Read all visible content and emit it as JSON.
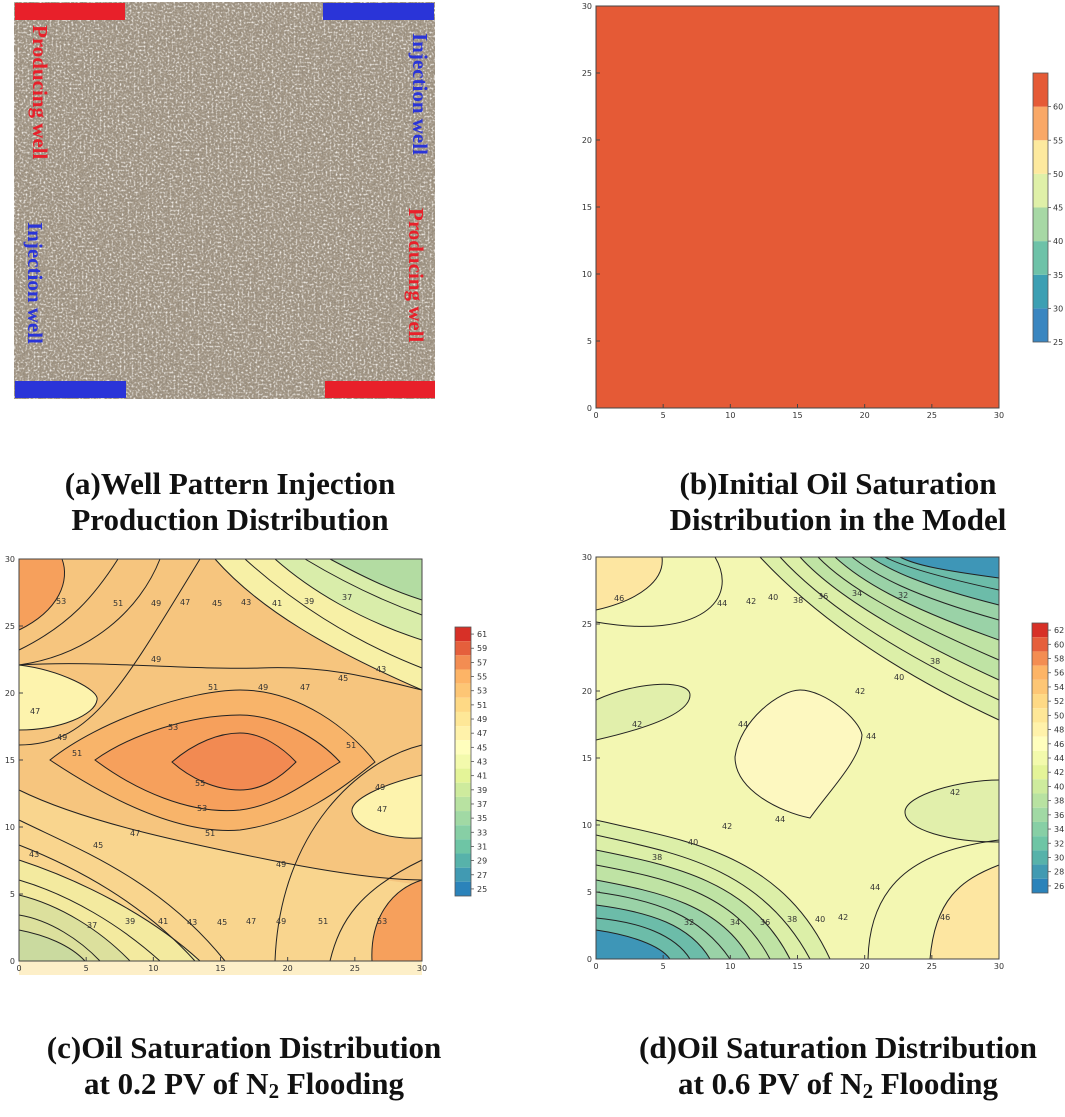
{
  "captions": {
    "a": {
      "line1": "(a)Well Pattern Injection",
      "line2": "Production Distribution"
    },
    "b": {
      "line1": "(b)Initial Oil Saturation",
      "line2": "Distribution in the Model"
    },
    "c": {
      "line1": "(c)Oil Saturation Distribution",
      "line2_pre": "at 0.2 PV of N",
      "line2_sub": "2",
      "line2_post": " Flooding"
    },
    "d": {
      "line1": "(d)Oil Saturation Distribution",
      "line2_pre": "at 0.6 PV of N",
      "line2_sub": "2",
      "line2_post": " Flooding"
    }
  },
  "colors": {
    "producing": "#e8202a",
    "injection": "#2a34d8",
    "rock_base": "#a19584",
    "uniform_fill": "#e55a36",
    "contour_line": "#222222"
  },
  "chart_data": [
    {
      "id": "a",
      "type": "other",
      "title": "Well Pattern Injection Production Distribution",
      "wells": [
        {
          "label": "Producing well",
          "kind": "producing",
          "corner": "top-left"
        },
        {
          "label": "Injection well",
          "kind": "injection",
          "corner": "top-right"
        },
        {
          "label": "Injection well",
          "kind": "injection",
          "corner": "bottom-left"
        },
        {
          "label": "Producing well",
          "kind": "producing",
          "corner": "bottom-right"
        }
      ]
    },
    {
      "id": "b",
      "type": "heatmap",
      "title": "Initial Oil Saturation Distribution in the Model",
      "xlim": [
        0,
        30
      ],
      "ylim": [
        0,
        30
      ],
      "xticks": [
        0,
        5,
        10,
        15,
        20,
        25,
        30
      ],
      "yticks": [
        0,
        5,
        10,
        15,
        20,
        25,
        30
      ],
      "uniform_value": 62,
      "colorbar": {
        "ticks": [
          25,
          30,
          35,
          40,
          45,
          50,
          55,
          60
        ],
        "colors": [
          "#3a86c0",
          "#3c9fb3",
          "#6ec2a8",
          "#a7d8a5",
          "#dff0a8",
          "#fde99e",
          "#f9a867",
          "#e55a36"
        ]
      }
    },
    {
      "id": "c",
      "type": "heatmap",
      "title": "Oil Saturation Distribution at 0.2 PV of N2 Flooding",
      "xlim": [
        0,
        30
      ],
      "ylim": [
        0,
        30
      ],
      "xticks": [
        0,
        5,
        10,
        15,
        20,
        25,
        30
      ],
      "yticks": [
        0,
        5,
        10,
        15,
        20,
        25,
        30
      ],
      "levels": [
        25,
        27,
        29,
        31,
        33,
        35,
        37,
        39,
        41,
        43,
        45,
        47,
        49,
        51,
        53,
        55,
        57,
        59,
        61
      ],
      "contour_labels": [
        53,
        51,
        49,
        47,
        45,
        43,
        41,
        39,
        37,
        55
      ],
      "colorbar": {
        "ticks": [
          61,
          59,
          57,
          55,
          53,
          51,
          49,
          47,
          45,
          43,
          41,
          39,
          37,
          35,
          33,
          31,
          29,
          27,
          25
        ]
      }
    },
    {
      "id": "d",
      "type": "heatmap",
      "title": "Oil Saturation Distribution at 0.6 PV of N2 Flooding",
      "xlim": [
        0,
        30
      ],
      "ylim": [
        0,
        30
      ],
      "xticks": [
        0,
        5,
        10,
        15,
        20,
        25,
        30
      ],
      "yticks": [
        0,
        5,
        10,
        15,
        20,
        25,
        30
      ],
      "levels": [
        26,
        28,
        30,
        32,
        34,
        36,
        38,
        40,
        42,
        44,
        46,
        48,
        50,
        52,
        54,
        56,
        58,
        60,
        62
      ],
      "contour_labels": [
        46,
        44,
        42,
        40,
        38,
        36,
        34,
        32
      ],
      "colorbar": {
        "ticks": [
          62,
          60,
          58,
          56,
          54,
          52,
          50,
          48,
          46,
          44,
          42,
          40,
          38,
          36,
          34,
          32,
          30,
          28,
          26
        ]
      }
    }
  ]
}
